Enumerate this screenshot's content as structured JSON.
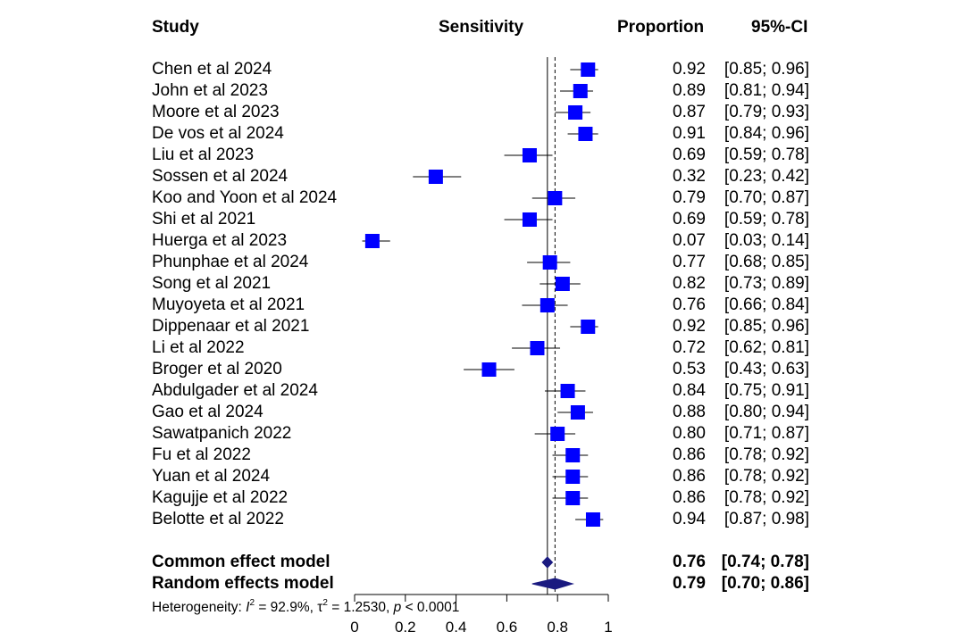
{
  "headers": {
    "study": "Study",
    "sensitivity": "Sensitivity",
    "proportion": "Proportion",
    "ci": "95%-CI"
  },
  "heterogeneity": {
    "label": "Heterogeneity:",
    "i2_symbol": "I",
    "i2_sup": "2",
    "i2_value": "= 92.9%,",
    "tau_symbol": "τ",
    "tau_sup": "2",
    "tau_value": "= 1.2530,",
    "p_symbol": "p",
    "p_value": "< 0.0001"
  },
  "chart_data": {
    "type": "forest",
    "xlim": [
      0,
      1
    ],
    "x_ticks": [
      "0",
      "0.2",
      "0.4",
      "0.6",
      "0.8",
      "1"
    ],
    "colors": {
      "square": "#0000ff",
      "diamond": "#1a1a80"
    },
    "studies": [
      {
        "label": "Chen et al 2024",
        "est": 0.92,
        "lo": 0.85,
        "hi": 0.96,
        "prop": "0.92",
        "ci": "[0.85; 0.96]"
      },
      {
        "label": "John et al 2023",
        "est": 0.89,
        "lo": 0.81,
        "hi": 0.94,
        "prop": "0.89",
        "ci": "[0.81; 0.94]"
      },
      {
        "label": "Moore et al 2023",
        "est": 0.87,
        "lo": 0.79,
        "hi": 0.93,
        "prop": "0.87",
        "ci": "[0.79; 0.93]"
      },
      {
        "label": "De vos et al 2024",
        "est": 0.91,
        "lo": 0.84,
        "hi": 0.96,
        "prop": "0.91",
        "ci": "[0.84; 0.96]"
      },
      {
        "label": "Liu et al 2023",
        "est": 0.69,
        "lo": 0.59,
        "hi": 0.78,
        "prop": "0.69",
        "ci": "[0.59; 0.78]"
      },
      {
        "label": "Sossen et al 2024",
        "est": 0.32,
        "lo": 0.23,
        "hi": 0.42,
        "prop": "0.32",
        "ci": "[0.23; 0.42]"
      },
      {
        "label": "Koo and Yoon et al 2024",
        "est": 0.79,
        "lo": 0.7,
        "hi": 0.87,
        "prop": "0.79",
        "ci": "[0.70; 0.87]"
      },
      {
        "label": "Shi et al 2021",
        "est": 0.69,
        "lo": 0.59,
        "hi": 0.78,
        "prop": "0.69",
        "ci": "[0.59; 0.78]"
      },
      {
        "label": "Huerga et al 2023",
        "est": 0.07,
        "lo": 0.03,
        "hi": 0.14,
        "prop": "0.07",
        "ci": "[0.03; 0.14]"
      },
      {
        "label": "Phunphae et al 2024",
        "est": 0.77,
        "lo": 0.68,
        "hi": 0.85,
        "prop": "0.77",
        "ci": "[0.68; 0.85]"
      },
      {
        "label": "Song et al 2021",
        "est": 0.82,
        "lo": 0.73,
        "hi": 0.89,
        "prop": "0.82",
        "ci": "[0.73; 0.89]"
      },
      {
        "label": "Muyoyeta et al 2021",
        "est": 0.76,
        "lo": 0.66,
        "hi": 0.84,
        "prop": "0.76",
        "ci": "[0.66; 0.84]"
      },
      {
        "label": "Dippenaar et al 2021",
        "est": 0.92,
        "lo": 0.85,
        "hi": 0.96,
        "prop": "0.92",
        "ci": "[0.85; 0.96]"
      },
      {
        "label": "Li et al 2022",
        "est": 0.72,
        "lo": 0.62,
        "hi": 0.81,
        "prop": "0.72",
        "ci": "[0.62; 0.81]"
      },
      {
        "label": "Broger et al 2020",
        "est": 0.53,
        "lo": 0.43,
        "hi": 0.63,
        "prop": "0.53",
        "ci": "[0.43; 0.63]"
      },
      {
        "label": "Abdulgader et al 2024",
        "est": 0.84,
        "lo": 0.75,
        "hi": 0.91,
        "prop": "0.84",
        "ci": "[0.75; 0.91]"
      },
      {
        "label": "Gao et al 2024",
        "est": 0.88,
        "lo": 0.8,
        "hi": 0.94,
        "prop": "0.88",
        "ci": "[0.80; 0.94]"
      },
      {
        "label": "Sawatpanich 2022",
        "est": 0.8,
        "lo": 0.71,
        "hi": 0.87,
        "prop": "0.80",
        "ci": "[0.71; 0.87]"
      },
      {
        "label": "Fu et al 2022",
        "est": 0.86,
        "lo": 0.78,
        "hi": 0.92,
        "prop": "0.86",
        "ci": "[0.78; 0.92]"
      },
      {
        "label": "Yuan et al 2024",
        "est": 0.86,
        "lo": 0.78,
        "hi": 0.92,
        "prop": "0.86",
        "ci": "[0.78; 0.92]"
      },
      {
        "label": "Kagujje et al 2022",
        "est": 0.86,
        "lo": 0.78,
        "hi": 0.92,
        "prop": "0.86",
        "ci": "[0.78; 0.92]"
      },
      {
        "label": "Belotte et al 2022",
        "est": 0.94,
        "lo": 0.87,
        "hi": 0.98,
        "prop": "0.94",
        "ci": "[0.87; 0.98]"
      }
    ],
    "pooled": [
      {
        "label": "Common effect model",
        "est": 0.76,
        "lo": 0.74,
        "hi": 0.78,
        "prop": "0.76",
        "ci": "[0.74; 0.78]"
      },
      {
        "label": "Random effects model",
        "est": 0.79,
        "lo": 0.7,
        "hi": 0.86,
        "prop": "0.79",
        "ci": "[0.70; 0.86]"
      }
    ]
  }
}
